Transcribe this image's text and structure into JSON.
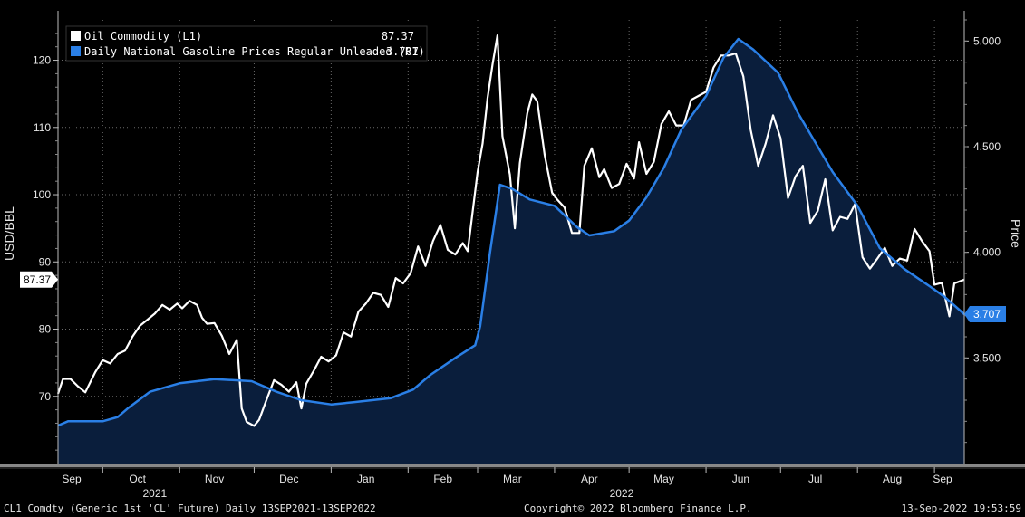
{
  "chart_data": {
    "type": "line",
    "left_axis": {
      "label": "USD/BBL",
      "ticks": [
        70,
        80,
        90,
        100,
        110,
        120
      ],
      "range": [
        60,
        126
      ]
    },
    "right_axis": {
      "label": "Price",
      "ticks": [
        "3.500",
        "4.000",
        "4.500",
        "5.000"
      ],
      "tick_values": [
        3.5,
        4.0,
        4.5,
        5.0
      ],
      "range": [
        3.0,
        5.1
      ]
    },
    "x_axis": {
      "months": [
        "Sep",
        "Oct",
        "Nov",
        "Dec",
        "Jan",
        "Feb",
        "Mar",
        "Apr",
        "May",
        "Jun",
        "Jul",
        "Aug",
        "Sep"
      ],
      "years": [
        {
          "label": "2021",
          "under_month_index": 1.7
        },
        {
          "label": "2022",
          "under_month_index": 7.9
        }
      ],
      "start": "2021-09-13",
      "end": "2022-09-13"
    },
    "legend": {
      "placement": "top-left"
    },
    "series": [
      {
        "name": "Oil Commodity (L1)",
        "last_value": "87.37",
        "axis": "left",
        "color": "#ffffff",
        "points": [
          [
            "2021-09-13",
            70.4
          ],
          [
            "2021-09-15",
            72.6
          ],
          [
            "2021-09-18",
            72.6
          ],
          [
            "2021-09-21",
            71.5
          ],
          [
            "2021-09-24",
            70.6
          ],
          [
            "2021-09-28",
            73.6
          ],
          [
            "2021-10-01",
            75.4
          ],
          [
            "2021-10-04",
            74.9
          ],
          [
            "2021-10-07",
            76.3
          ],
          [
            "2021-10-10",
            76.8
          ],
          [
            "2021-10-13",
            78.9
          ],
          [
            "2021-10-16",
            80.5
          ],
          [
            "2021-10-19",
            81.4
          ],
          [
            "2021-10-22",
            82.3
          ],
          [
            "2021-10-25",
            83.6
          ],
          [
            "2021-10-28",
            82.9
          ],
          [
            "2021-10-31",
            83.8
          ],
          [
            "2021-11-02",
            83.1
          ],
          [
            "2021-11-05",
            84.2
          ],
          [
            "2021-11-08",
            83.6
          ],
          [
            "2021-11-10",
            81.7
          ],
          [
            "2021-11-12",
            80.8
          ],
          [
            "2021-11-15",
            80.9
          ],
          [
            "2021-11-18",
            79.0
          ],
          [
            "2021-11-21",
            76.3
          ],
          [
            "2021-11-24",
            78.4
          ],
          [
            "2021-11-26",
            68.2
          ],
          [
            "2021-11-28",
            66.2
          ],
          [
            "2021-12-01",
            65.6
          ],
          [
            "2021-12-03",
            66.5
          ],
          [
            "2021-12-06",
            69.5
          ],
          [
            "2021-12-09",
            72.4
          ],
          [
            "2021-12-12",
            71.7
          ],
          [
            "2021-12-15",
            70.7
          ],
          [
            "2021-12-18",
            72.1
          ],
          [
            "2021-12-20",
            68.2
          ],
          [
            "2021-12-22",
            71.9
          ],
          [
            "2021-12-25",
            73.8
          ],
          [
            "2021-12-28",
            75.9
          ],
          [
            "2021-12-31",
            75.2
          ],
          [
            "2022-01-03",
            76.1
          ],
          [
            "2022-01-06",
            79.5
          ],
          [
            "2022-01-09",
            78.9
          ],
          [
            "2022-01-12",
            82.6
          ],
          [
            "2022-01-15",
            83.8
          ],
          [
            "2022-01-18",
            85.4
          ],
          [
            "2022-01-21",
            85.1
          ],
          [
            "2022-01-24",
            83.3
          ],
          [
            "2022-01-27",
            87.6
          ],
          [
            "2022-01-30",
            86.8
          ],
          [
            "2022-02-02",
            88.3
          ],
          [
            "2022-02-05",
            92.3
          ],
          [
            "2022-02-08",
            89.4
          ],
          [
            "2022-02-11",
            93.1
          ],
          [
            "2022-02-14",
            95.5
          ],
          [
            "2022-02-17",
            91.8
          ],
          [
            "2022-02-20",
            91.1
          ],
          [
            "2022-02-23",
            92.8
          ],
          [
            "2022-02-25",
            91.6
          ],
          [
            "2022-03-01",
            103.4
          ],
          [
            "2022-03-03",
            107.6
          ],
          [
            "2022-03-05",
            114.4
          ],
          [
            "2022-03-07",
            119.4
          ],
          [
            "2022-03-09",
            123.7
          ],
          [
            "2022-03-11",
            108.7
          ],
          [
            "2022-03-14",
            103.0
          ],
          [
            "2022-03-16",
            95.0
          ],
          [
            "2022-03-18",
            104.7
          ],
          [
            "2022-03-21",
            112.1
          ],
          [
            "2022-03-23",
            114.9
          ],
          [
            "2022-03-25",
            113.9
          ],
          [
            "2022-03-28",
            105.9
          ],
          [
            "2022-03-31",
            100.3
          ],
          [
            "2022-04-02",
            99.3
          ],
          [
            "2022-04-05",
            98.1
          ],
          [
            "2022-04-08",
            94.3
          ],
          [
            "2022-04-11",
            94.3
          ],
          [
            "2022-04-13",
            104.3
          ],
          [
            "2022-04-16",
            106.9
          ],
          [
            "2022-04-19",
            102.6
          ],
          [
            "2022-04-21",
            103.8
          ],
          [
            "2022-04-24",
            101.0
          ],
          [
            "2022-04-27",
            101.6
          ],
          [
            "2022-04-30",
            104.6
          ],
          [
            "2022-05-03",
            102.4
          ],
          [
            "2022-05-05",
            107.8
          ],
          [
            "2022-05-08",
            103.1
          ],
          [
            "2022-05-11",
            104.9
          ],
          [
            "2022-05-14",
            110.5
          ],
          [
            "2022-05-17",
            112.4
          ],
          [
            "2022-05-20",
            110.3
          ],
          [
            "2022-05-23",
            110.3
          ],
          [
            "2022-05-26",
            114.1
          ],
          [
            "2022-05-29",
            114.7
          ],
          [
            "2022-06-01",
            115.3
          ],
          [
            "2022-06-04",
            118.9
          ],
          [
            "2022-06-07",
            120.7
          ],
          [
            "2022-06-10",
            120.7
          ],
          [
            "2022-06-13",
            121.0
          ],
          [
            "2022-06-16",
            117.6
          ],
          [
            "2022-06-19",
            109.6
          ],
          [
            "2022-06-22",
            104.3
          ],
          [
            "2022-06-25",
            107.6
          ],
          [
            "2022-06-28",
            111.8
          ],
          [
            "2022-07-01",
            108.4
          ],
          [
            "2022-07-04",
            99.5
          ],
          [
            "2022-07-07",
            102.7
          ],
          [
            "2022-07-10",
            104.3
          ],
          [
            "2022-07-13",
            95.8
          ],
          [
            "2022-07-16",
            97.6
          ],
          [
            "2022-07-19",
            102.3
          ],
          [
            "2022-07-22",
            94.7
          ],
          [
            "2022-07-25",
            96.7
          ],
          [
            "2022-07-28",
            96.4
          ],
          [
            "2022-07-31",
            98.6
          ],
          [
            "2022-08-03",
            90.7
          ],
          [
            "2022-08-06",
            89.0
          ],
          [
            "2022-08-09",
            90.5
          ],
          [
            "2022-08-12",
            92.1
          ],
          [
            "2022-08-15",
            89.4
          ],
          [
            "2022-08-18",
            90.5
          ],
          [
            "2022-08-21",
            90.2
          ],
          [
            "2022-08-24",
            94.9
          ],
          [
            "2022-08-27",
            93.1
          ],
          [
            "2022-08-30",
            91.6
          ],
          [
            "2022-09-01",
            86.6
          ],
          [
            "2022-09-04",
            86.9
          ],
          [
            "2022-09-07",
            81.9
          ],
          [
            "2022-09-09",
            86.8
          ],
          [
            "2022-09-13",
            87.37
          ]
        ]
      },
      {
        "name": "Daily National Gasoline Prices Regular Unleaded (R1)",
        "last_value": "3.707",
        "axis": "right",
        "color": "#2a7fe6",
        "fill": "#0a1e3c",
        "points": [
          [
            "2021-09-13",
            3.18
          ],
          [
            "2021-09-17",
            3.2
          ],
          [
            "2021-10-01",
            3.2
          ],
          [
            "2021-10-07",
            3.22
          ],
          [
            "2021-10-11",
            3.26
          ],
          [
            "2021-10-20",
            3.34
          ],
          [
            "2021-11-01",
            3.38
          ],
          [
            "2021-11-15",
            3.4
          ],
          [
            "2021-11-30",
            3.39
          ],
          [
            "2021-12-10",
            3.34
          ],
          [
            "2021-12-20",
            3.3
          ],
          [
            "2022-01-01",
            3.28
          ],
          [
            "2022-01-10",
            3.29
          ],
          [
            "2022-01-25",
            3.31
          ],
          [
            "2022-02-03",
            3.35
          ],
          [
            "2022-02-10",
            3.42
          ],
          [
            "2022-02-20",
            3.5
          ],
          [
            "2022-02-28",
            3.56
          ],
          [
            "2022-03-02",
            3.65
          ],
          [
            "2022-03-06",
            4.0
          ],
          [
            "2022-03-10",
            4.32
          ],
          [
            "2022-03-15",
            4.3
          ],
          [
            "2022-03-22",
            4.25
          ],
          [
            "2022-04-01",
            4.22
          ],
          [
            "2022-04-10",
            4.12
          ],
          [
            "2022-04-15",
            4.08
          ],
          [
            "2022-04-25",
            4.1
          ],
          [
            "2022-05-01",
            4.15
          ],
          [
            "2022-05-08",
            4.26
          ],
          [
            "2022-05-15",
            4.4
          ],
          [
            "2022-05-22",
            4.58
          ],
          [
            "2022-06-01",
            4.74
          ],
          [
            "2022-06-08",
            4.92
          ],
          [
            "2022-06-14",
            5.01
          ],
          [
            "2022-06-20",
            4.96
          ],
          [
            "2022-06-30",
            4.85
          ],
          [
            "2022-07-08",
            4.66
          ],
          [
            "2022-07-15",
            4.52
          ],
          [
            "2022-07-22",
            4.38
          ],
          [
            "2022-08-01",
            4.22
          ],
          [
            "2022-08-10",
            4.02
          ],
          [
            "2022-08-20",
            3.92
          ],
          [
            "2022-08-30",
            3.84
          ],
          [
            "2022-09-05",
            3.79
          ],
          [
            "2022-09-13",
            3.707
          ]
        ]
      }
    ]
  },
  "badges": {
    "left": "87.37",
    "right": "3.707"
  },
  "footer": {
    "left": "CL1 Comdty (Generic 1st 'CL' Future) Daily 13SEP2021-13SEP2022",
    "center": "Copyright© 2022 Bloomberg Finance L.P.",
    "right": "13-Sep-2022 19:53:59"
  },
  "colors": {
    "background": "#000000",
    "oil": "#ffffff",
    "gasoline": "#2a7fe6",
    "fill": "#0a1e3c",
    "grid": "#6a6a6a"
  }
}
